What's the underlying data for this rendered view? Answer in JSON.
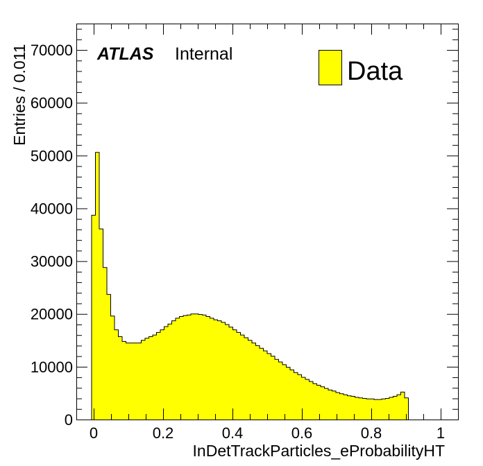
{
  "atlas_label": {
    "bold": "ATLAS",
    "rest": "Internal"
  },
  "colors": {
    "fill": "#ffff00",
    "line": "#000000"
  },
  "chart_data": {
    "type": "bar",
    "style": "histogram",
    "xlabel": "InDetTrackParticles_eProbabilityHT",
    "ylabel": "Entries / 0.011",
    "xlim": [
      -0.05,
      1.05
    ],
    "ylim": [
      0,
      75000
    ],
    "x_ticks": [
      0,
      0.2,
      0.4,
      0.6,
      0.8,
      1
    ],
    "x_tick_labels": [
      "0",
      "0.2",
      "0.4",
      "0.6",
      "0.8",
      "1"
    ],
    "y_ticks": [
      0,
      10000,
      20000,
      30000,
      40000,
      50000,
      60000,
      70000
    ],
    "y_tick_labels": [
      "0",
      "10000",
      "20000",
      "30000",
      "40000",
      "50000",
      "60000",
      "70000"
    ],
    "legend": {
      "position": "top-right",
      "entries": [
        "Data"
      ]
    },
    "bin_width": 0.011,
    "bin_start": -0.006,
    "series": [
      {
        "name": "Data",
        "values": [
          38700,
          50600,
          36100,
          28800,
          23700,
          19600,
          17000,
          15700,
          14800,
          14500,
          14500,
          14500,
          14500,
          15000,
          15400,
          15700,
          16000,
          16500,
          17000,
          17600,
          18100,
          18700,
          19200,
          19500,
          19700,
          19800,
          20000,
          20000,
          19900,
          19800,
          19500,
          19200,
          18900,
          18700,
          18400,
          18000,
          17500,
          17000,
          16500,
          16000,
          15500,
          15000,
          14500,
          14000,
          13500,
          13000,
          12500,
          12000,
          11400,
          10900,
          10400,
          9900,
          9400,
          8900,
          8500,
          8000,
          7600,
          7200,
          6800,
          6500,
          6200,
          5900,
          5600,
          5400,
          5100,
          4900,
          4700,
          4500,
          4400,
          4200,
          4100,
          4000,
          3900,
          3900,
          3800,
          3800,
          3900,
          4000,
          4200,
          4400,
          4700,
          5200,
          4100
        ]
      }
    ]
  }
}
